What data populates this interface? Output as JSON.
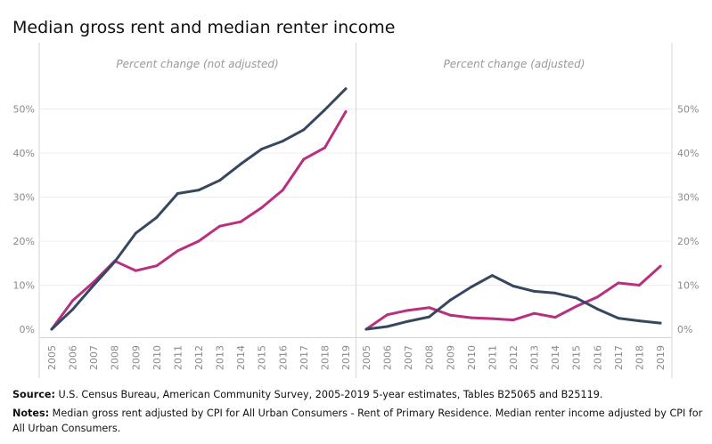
{
  "title": "Median gross rent and median renter income",
  "source_label": "Source:",
  "source_text": " U.S. Census Bureau, American Community Survey, 2005-2019 5-year estimates, Tables B25065 and B25119.",
  "notes_label": "Notes:",
  "notes_text": " Median gross rent adjusted by CPI for All Urban Consumers - Rent of Primary Residence. Median renter income adjusted by CPI for All Urban Consumers.",
  "colors": {
    "gross_rent": "#37475f",
    "renter_income": "#b8307f",
    "grid": "#ececec",
    "axis_text": "#8a8a8a",
    "panel_label": "#999999"
  },
  "chart_data": [
    {
      "type": "line",
      "title": "Percent change (not adjusted)",
      "x": [
        "2005",
        "2006",
        "2007",
        "2008",
        "2009",
        "2010",
        "2011",
        "2012",
        "2013",
        "2014",
        "2015",
        "2016",
        "2017",
        "2018",
        "2019"
      ],
      "yticks": [
        "0%",
        "10%",
        "20%",
        "30%",
        "40%",
        "50%"
      ],
      "ylim": [
        0,
        60
      ],
      "y_axis_side": "left",
      "grid": true,
      "series": [
        {
          "color": "#37475f",
          "values": [
            0,
            4.5,
            10,
            15.3,
            21.8,
            25.4,
            30.8,
            31.6,
            33.8,
            37.5,
            40.9,
            42.7,
            45.3,
            49.8,
            54.6
          ]
        },
        {
          "color": "#b8307f",
          "values": [
            0,
            6.5,
            10.7,
            15.5,
            13.3,
            14.4,
            17.8,
            20,
            23.4,
            24.4,
            27.6,
            31.6,
            38.6,
            41.2,
            49.4
          ]
        }
      ]
    },
    {
      "type": "line",
      "title": "Percent change (adjusted)",
      "x": [
        "2005",
        "2006",
        "2007",
        "2008",
        "2009",
        "2010",
        "2011",
        "2012",
        "2013",
        "2014",
        "2015",
        "2016",
        "2017",
        "2018",
        "2019"
      ],
      "yticks": [
        "0%",
        "10%",
        "20%",
        "30%",
        "40%",
        "50%"
      ],
      "ylim": [
        0,
        60
      ],
      "y_axis_side": "right",
      "grid": true,
      "series": [
        {
          "color": "#37475f",
          "values": [
            0,
            0.6,
            1.8,
            2.8,
            6.6,
            9.6,
            12.2,
            9.8,
            8.6,
            8.2,
            7.1,
            4.6,
            2.5,
            1.9,
            1.4
          ]
        },
        {
          "color": "#b8307f",
          "values": [
            0,
            3.3,
            4.3,
            4.9,
            3.2,
            2.6,
            2.4,
            2.1,
            3.6,
            2.7,
            5.2,
            7.3,
            10.5,
            10,
            14.3
          ]
        }
      ]
    }
  ]
}
